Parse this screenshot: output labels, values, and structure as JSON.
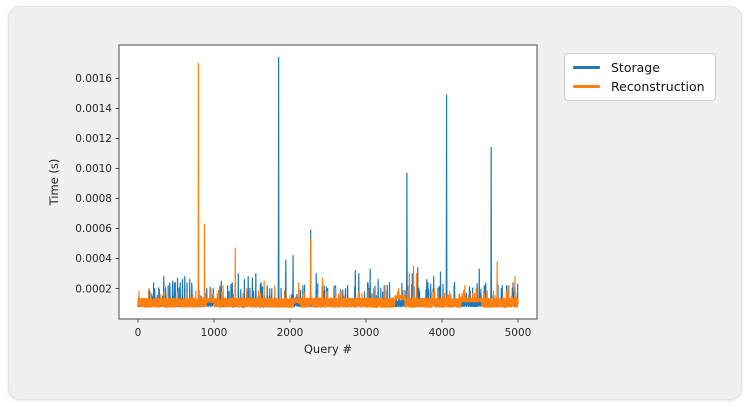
{
  "window": {
    "background": "#ffffff",
    "card_background": "#f0f0f0",
    "card_border": "#e2e2e2"
  },
  "chart_data": {
    "type": "line",
    "title": "",
    "xlabel": "Query #",
    "ylabel": "Time (s)",
    "grid": false,
    "axes_background": "#ffffff",
    "frame_color": "#4a4a4a",
    "text_color": "#262626",
    "x_ticks": [
      0,
      1000,
      2000,
      3000,
      4000,
      5000
    ],
    "y_ticks": [
      0.0002,
      0.0004,
      0.0006,
      0.0008,
      0.001,
      0.0012,
      0.0014,
      0.0016
    ],
    "xlim": [
      -250,
      5250
    ],
    "ylim": [
      -2e-06,
      0.001823
    ],
    "n_queries": 5001,
    "legend": {
      "location": "outside-upper-right",
      "entries": [
        {
          "label": "Storage",
          "color": "#1f77b4"
        },
        {
          "label": "Reconstruction",
          "color": "#ff7f0e"
        }
      ]
    },
    "series": [
      {
        "name": "Storage",
        "color": "#1f77b4",
        "baseline_range": [
          8e-05,
          0.000122
        ],
        "bump_prob": 0.03,
        "bump_base": 0.00013,
        "bump_span": 0.00011,
        "plateaus": [],
        "spikes": [
          [
            150,
            0.00018
          ],
          [
            220,
            0.0002
          ],
          [
            340,
            0.00028
          ],
          [
            420,
            0.00022
          ],
          [
            455,
            0.00025
          ],
          [
            490,
            0.00024
          ],
          [
            520,
            0.00027
          ],
          [
            555,
            0.00024
          ],
          [
            585,
            0.00026
          ],
          [
            615,
            0.00028
          ],
          [
            645,
            0.00024
          ],
          [
            680,
            0.00026
          ],
          [
            710,
            0.00022
          ],
          [
            905,
            0.0002
          ],
          [
            950,
            0.00021
          ],
          [
            990,
            0.0002
          ],
          [
            1096,
            0.00025
          ],
          [
            1180,
            0.00022
          ],
          [
            1240,
            0.00024
          ],
          [
            1320,
            0.0003
          ],
          [
            1400,
            0.00026
          ],
          [
            1450,
            0.00028
          ],
          [
            1505,
            0.00027
          ],
          [
            1550,
            0.0003
          ],
          [
            1620,
            0.00024
          ],
          [
            1700,
            0.00022
          ],
          [
            1760,
            0.0002
          ],
          [
            1850,
            0.00174
          ],
          [
            1945,
            0.00039
          ],
          [
            2040,
            0.00042
          ],
          [
            2170,
            0.00022
          ],
          [
            2272,
            0.00059
          ],
          [
            2345,
            0.0003
          ],
          [
            2450,
            0.00022
          ],
          [
            2600,
            0.00022
          ],
          [
            2730,
            0.0002
          ],
          [
            2859,
            0.00032
          ],
          [
            2905,
            0.0003
          ],
          [
            3020,
            0.00024
          ],
          [
            3055,
            0.00033
          ],
          [
            3160,
            0.00026
          ],
          [
            3240,
            0.00022
          ],
          [
            3310,
            0.00024
          ],
          [
            3538,
            0.00097
          ],
          [
            3610,
            0.0003
          ],
          [
            3681,
            0.00034
          ],
          [
            3800,
            0.00026
          ],
          [
            3890,
            0.00028
          ],
          [
            3980,
            0.00031
          ],
          [
            4060,
            0.00149
          ],
          [
            4165,
            0.00024
          ],
          [
            4360,
            0.0002
          ],
          [
            4490,
            0.00033
          ],
          [
            4556,
            0.00022
          ],
          [
            4647,
            0.00114
          ],
          [
            4780,
            0.0002
          ],
          [
            4850,
            0.00022
          ],
          [
            4950,
            0.00018
          ]
        ]
      },
      {
        "name": "Reconstruction",
        "color": "#ff7f0e",
        "baseline_range": [
          7.5e-05,
          0.000138
        ],
        "bump_prob": 0.012,
        "bump_base": 0.00014,
        "bump_span": 5e-05,
        "plateaus": [
          [
            900,
            1000,
            0.00013
          ],
          [
            2050,
            2140,
            0.000125
          ],
          [
            3380,
            3510,
            0.000155
          ],
          [
            4250,
            4520,
            0.000135
          ]
        ],
        "spikes": [
          [
            300,
            0.00016
          ],
          [
            520,
            0.00017
          ],
          [
            795,
            0.0017
          ],
          [
            875,
            0.00063
          ],
          [
            960,
            0.0002
          ],
          [
            1120,
            0.00022
          ],
          [
            1280,
            0.00047
          ],
          [
            1430,
            0.0002
          ],
          [
            1660,
            0.00025
          ],
          [
            1800,
            0.00022
          ],
          [
            2115,
            0.00024
          ],
          [
            2272,
            0.00053
          ],
          [
            2428,
            0.00027
          ],
          [
            2598,
            0.0002
          ],
          [
            2663,
            0.00018
          ],
          [
            2900,
            0.00018
          ],
          [
            3100,
            0.0002
          ],
          [
            3250,
            0.00022
          ],
          [
            3430,
            0.0002
          ],
          [
            3570,
            0.0003
          ],
          [
            3625,
            0.00035
          ],
          [
            3665,
            0.0003
          ],
          [
            3900,
            0.0002
          ],
          [
            4100,
            0.00018
          ],
          [
            4300,
            0.00022
          ],
          [
            4450,
            0.0002
          ],
          [
            4726,
            0.00038
          ],
          [
            4880,
            0.00022
          ],
          [
            4960,
            0.00028
          ]
        ]
      }
    ]
  }
}
